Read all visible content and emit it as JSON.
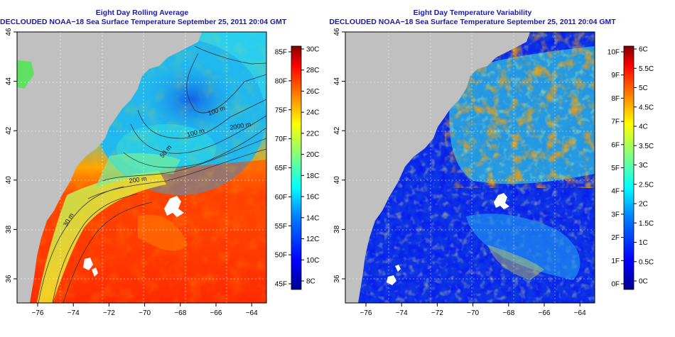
{
  "left_panel": {
    "title_line1": "Eight Day Rolling Average",
    "title_line2": "DECLOUDED NOAA−18 Sea Surface Temperature September 25, 2011 20:04 GMT",
    "x_ticks": [
      "−76",
      "−74",
      "−72",
      "−70",
      "−68",
      "−66",
      "−64"
    ],
    "y_ticks": [
      "36",
      "38",
      "40",
      "42",
      "44",
      "46"
    ],
    "contour_labels": [
      "100 m",
      "100 m",
      "50 m",
      "2000 m",
      "200 m",
      "30 m"
    ],
    "colorbar": {
      "fahrenheit_labels": [
        "45F",
        "50F",
        "55F",
        "60F",
        "65F",
        "70F",
        "75F",
        "80F",
        "85F"
      ],
      "celsius_labels": [
        "8C",
        "10C",
        "12C",
        "14C",
        "16C",
        "18C",
        "20C",
        "22C",
        "24C",
        "26C",
        "28C",
        "30C"
      ],
      "colors": [
        "#00008f",
        "#0000ff",
        "#0080ff",
        "#00ffff",
        "#80ff80",
        "#ffff00",
        "#ff8000",
        "#ff0000",
        "#800000"
      ]
    }
  },
  "right_panel": {
    "title_line1": "Eight Day Temperature Variability",
    "title_line2": "DECLOUDED NOAA−18 Sea Surface Temperature September 25, 2011 20:04 GMT",
    "x_ticks": [
      "−76",
      "−74",
      "−72",
      "−70",
      "−68",
      "−66",
      "−64"
    ],
    "y_ticks": [
      "36",
      "38",
      "40",
      "42",
      "44",
      "46"
    ],
    "colorbar": {
      "fahrenheit_labels": [
        "0F",
        "1F",
        "2F",
        "3F",
        "4F",
        "5F",
        "6F",
        "7F",
        "8F",
        "9F",
        "10F"
      ],
      "celsius_labels": [
        "0C",
        "0.5C",
        "1C",
        "1.5C",
        "2C",
        "2.5C",
        "3C",
        "3.5C",
        "4C",
        "4.5C",
        "5C",
        "5.5C",
        "6C"
      ],
      "colors": [
        "#00008f",
        "#0000ff",
        "#0080ff",
        "#00ffff",
        "#80ff80",
        "#ffff00",
        "#ff8000",
        "#ff0000",
        "#800000"
      ]
    }
  },
  "colors": {
    "land": "#c0c0c0",
    "title": "#1a1aa8"
  }
}
